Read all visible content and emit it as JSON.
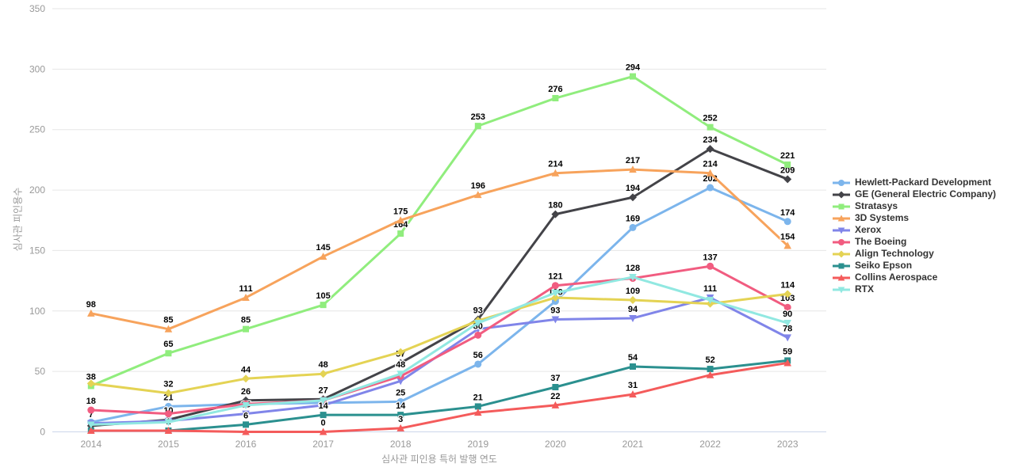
{
  "chart_data": {
    "type": "line",
    "title": "",
    "xlabel": "심사관 피인용 특허 발행 연도",
    "ylabel": "심사관 피인용수",
    "categories": [
      "2014",
      "2015",
      "2016",
      "2017",
      "2018",
      "2019",
      "2020",
      "2021",
      "2022",
      "2023"
    ],
    "ylim": [
      0,
      350
    ],
    "y_ticks": [
      0,
      50,
      100,
      150,
      200,
      250,
      300,
      350
    ],
    "grid": true,
    "legend_position": "right",
    "colors": {
      "gridline": "#e6e6e6",
      "axis_line": "#ccd6eb",
      "tick_text": "#999999",
      "data_label": "#000000",
      "legend_text": "#333333"
    },
    "series": [
      {
        "name": "Hewlett-Packard Development",
        "color": "#7cb5ec",
        "marker": "circle",
        "values": [
          8,
          21,
          23,
          24,
          25,
          56,
          108,
          169,
          202,
          174
        ],
        "labels": [
          null,
          21,
          null,
          null,
          25,
          56,
          108,
          169,
          202,
          174
        ]
      },
      {
        "name": "GE (General Electric Company)",
        "color": "#434348",
        "marker": "diamond",
        "values": [
          5,
          10,
          26,
          27,
          57,
          93,
          180,
          194,
          234,
          209
        ],
        "labels": [
          null,
          10,
          26,
          27,
          57,
          93,
          180,
          194,
          234,
          209
        ]
      },
      {
        "name": "Stratasys",
        "color": "#90ed7d",
        "marker": "square",
        "values": [
          38,
          65,
          85,
          105,
          164,
          253,
          276,
          294,
          252,
          221
        ],
        "labels": [
          38,
          65,
          85,
          105,
          164,
          253,
          276,
          294,
          252,
          221
        ]
      },
      {
        "name": "3D Systems",
        "color": "#f7a35c",
        "marker": "triangle",
        "values": [
          98,
          85,
          111,
          145,
          175,
          196,
          214,
          217,
          214,
          154
        ],
        "labels": [
          98,
          85,
          111,
          145,
          175,
          196,
          214,
          217,
          214,
          154
        ]
      },
      {
        "name": "Xerox",
        "color": "#8085e9",
        "marker": "triangle-down",
        "values": [
          7,
          9,
          15,
          22,
          42,
          85,
          93,
          94,
          111,
          78
        ],
        "labels": [
          7,
          null,
          15,
          null,
          null,
          null,
          93,
          94,
          111,
          78
        ]
      },
      {
        "name": "The Boeing",
        "color": "#f15c80",
        "marker": "circle",
        "values": [
          18,
          15,
          23,
          26,
          46,
          80,
          121,
          127,
          137,
          103
        ],
        "labels": [
          18,
          null,
          null,
          null,
          null,
          80,
          121,
          null,
          137,
          103
        ]
      },
      {
        "name": "Align Technology",
        "color": "#e4d354",
        "marker": "diamond",
        "values": [
          40,
          32,
          44,
          48,
          66,
          92,
          111,
          109,
          106,
          114
        ],
        "labels": [
          null,
          32,
          44,
          48,
          null,
          null,
          null,
          109,
          null,
          114
        ]
      },
      {
        "name": "Seiko Epson",
        "color": "#2b908f",
        "marker": "square",
        "values": [
          1,
          1,
          6,
          14,
          14,
          21,
          37,
          54,
          52,
          59
        ],
        "labels": [
          null,
          1,
          6,
          14,
          14,
          21,
          37,
          54,
          52,
          59
        ]
      },
      {
        "name": "Collins Aerospace",
        "color": "#f45b5b",
        "marker": "triangle",
        "values": [
          1,
          1,
          0,
          0,
          3,
          16,
          22,
          31,
          47,
          57
        ],
        "labels": [
          null,
          null,
          null,
          0,
          3,
          null,
          22,
          31,
          null,
          null
        ]
      },
      {
        "name": "RTX",
        "color": "#91e8e1",
        "marker": "triangle-down",
        "values": [
          6,
          8,
          22,
          26,
          48,
          90,
          115,
          128,
          109,
          90
        ],
        "labels": [
          null,
          null,
          null,
          null,
          48,
          null,
          null,
          128,
          null,
          90
        ]
      }
    ]
  }
}
